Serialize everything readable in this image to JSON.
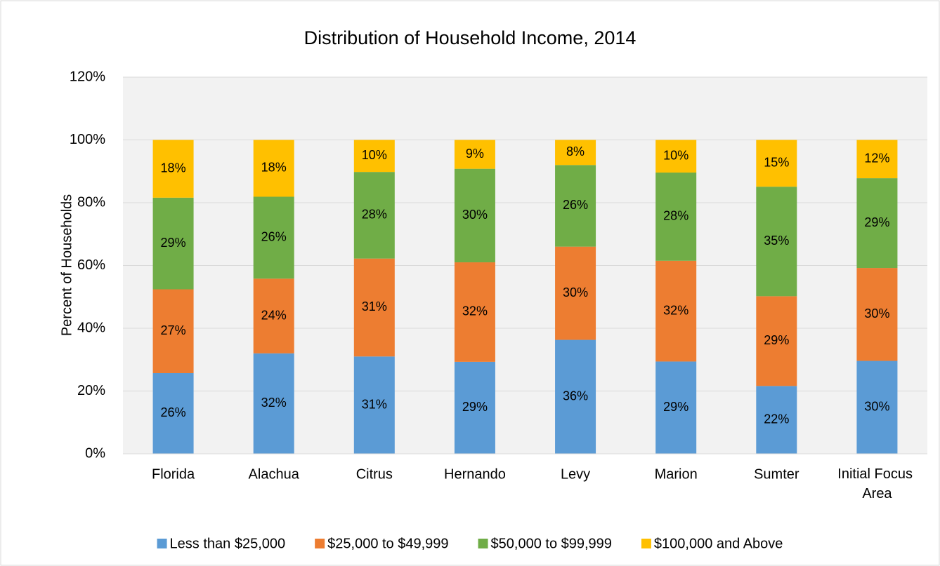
{
  "chart_data": {
    "type": "stacked_bar",
    "title": "Distribution of Household Income, 2014",
    "y_label": "Percent of Households",
    "categories": [
      "Florida",
      "Alachua",
      "Citrus",
      "Hernando",
      "Levy",
      "Marion",
      "Sumter",
      "Initial Focus Area"
    ],
    "series": [
      {
        "name": "Less than $25,000",
        "color": "#5b9bd5",
        "values": [
          25.7,
          32,
          31,
          29.3,
          36.3,
          29.4,
          21.6,
          29.6
        ],
        "value_labels": [
          "26%",
          "32%",
          "31%",
          "29%",
          "36%",
          "29%",
          "22%",
          "30%"
        ]
      },
      {
        "name": "$25,000 to $49,999",
        "color": "#ed7d31",
        "values": [
          26.7,
          23.8,
          31.2,
          31.7,
          29.7,
          32.1,
          28.6,
          29.6
        ],
        "value_labels": [
          "27%",
          "24%",
          "31%",
          "32%",
          "30%",
          "32%",
          "29%",
          "30%"
        ]
      },
      {
        "name": "$50,000 to $99,999",
        "color": "#70ad47",
        "values": [
          29.2,
          26.1,
          27.6,
          29.8,
          26,
          28.1,
          34.9,
          28.6
        ],
        "value_labels": [
          "29%",
          "26%",
          "28%",
          "30%",
          "26%",
          "28%",
          "35%",
          "29%"
        ]
      },
      {
        "name": "$100,000 and Above",
        "color": "#ffc000",
        "values": [
          18.4,
          18.1,
          10.2,
          9.2,
          8,
          10.4,
          14.9,
          12.2
        ],
        "value_labels": [
          "18%",
          "18%",
          "10%",
          "9%",
          "8%",
          "10%",
          "15%",
          "12%"
        ]
      }
    ],
    "ylim": [
      0,
      120
    ],
    "yticks": [
      {
        "value": 0,
        "label": "0%"
      },
      {
        "value": 20,
        "label": "20%"
      },
      {
        "value": 40,
        "label": "40%"
      },
      {
        "value": 60,
        "label": "60%"
      },
      {
        "value": 80,
        "label": "80%"
      },
      {
        "value": 100,
        "label": "100%"
      },
      {
        "value": 120,
        "label": "120%"
      }
    ],
    "grid": true,
    "legend": "bottom"
  }
}
